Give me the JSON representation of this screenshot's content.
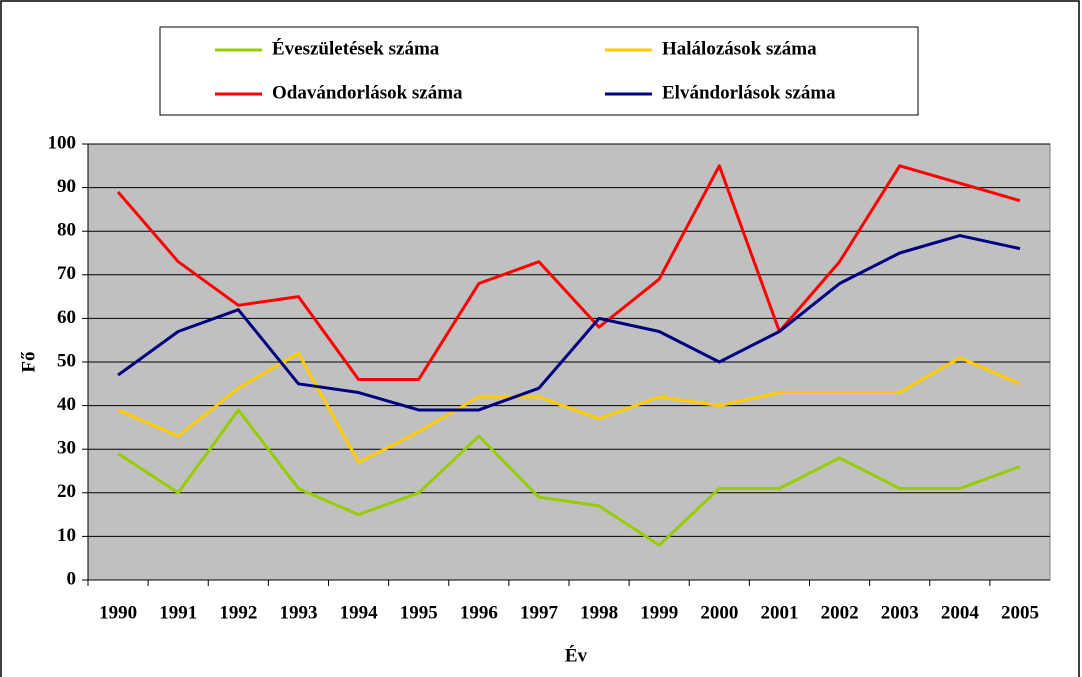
{
  "chart_data": {
    "type": "line",
    "x_label": "Év",
    "y_label": "Fő",
    "categories": [
      "1990",
      "1991",
      "1992",
      "1993",
      "1994",
      "1995",
      "1996",
      "1997",
      "1998",
      "1999",
      "2000",
      "2001",
      "2002",
      "2003",
      "2004",
      "2005"
    ],
    "series": [
      {
        "name": "Éveszületések száma",
        "color": "#99cc00",
        "values": [
          29,
          20,
          39,
          21,
          15,
          20,
          33,
          19,
          17,
          8,
          21,
          21,
          28,
          21,
          21,
          26
        ]
      },
      {
        "name": "Halálozások száma",
        "color": "#ffcc00",
        "values": [
          39,
          33,
          44,
          52,
          27,
          34,
          42,
          42,
          37,
          42,
          40,
          43,
          43,
          43,
          51,
          45
        ]
      },
      {
        "name": "Odavándorlások száma",
        "color": "#ff0000",
        "values": [
          89,
          73,
          63,
          65,
          46,
          46,
          68,
          73,
          58,
          69,
          95,
          57,
          73,
          95,
          91,
          87
        ]
      },
      {
        "name": "Elvándorlások száma",
        "color": "#000080",
        "values": [
          47,
          57,
          62,
          45,
          43,
          39,
          39,
          44,
          60,
          57,
          50,
          57,
          68,
          75,
          79,
          76
        ]
      }
    ],
    "ylim": [
      0,
      100
    ],
    "yticks": [
      0,
      10,
      20,
      30,
      40,
      50,
      60,
      70,
      80,
      90,
      100
    ],
    "grid": true
  }
}
